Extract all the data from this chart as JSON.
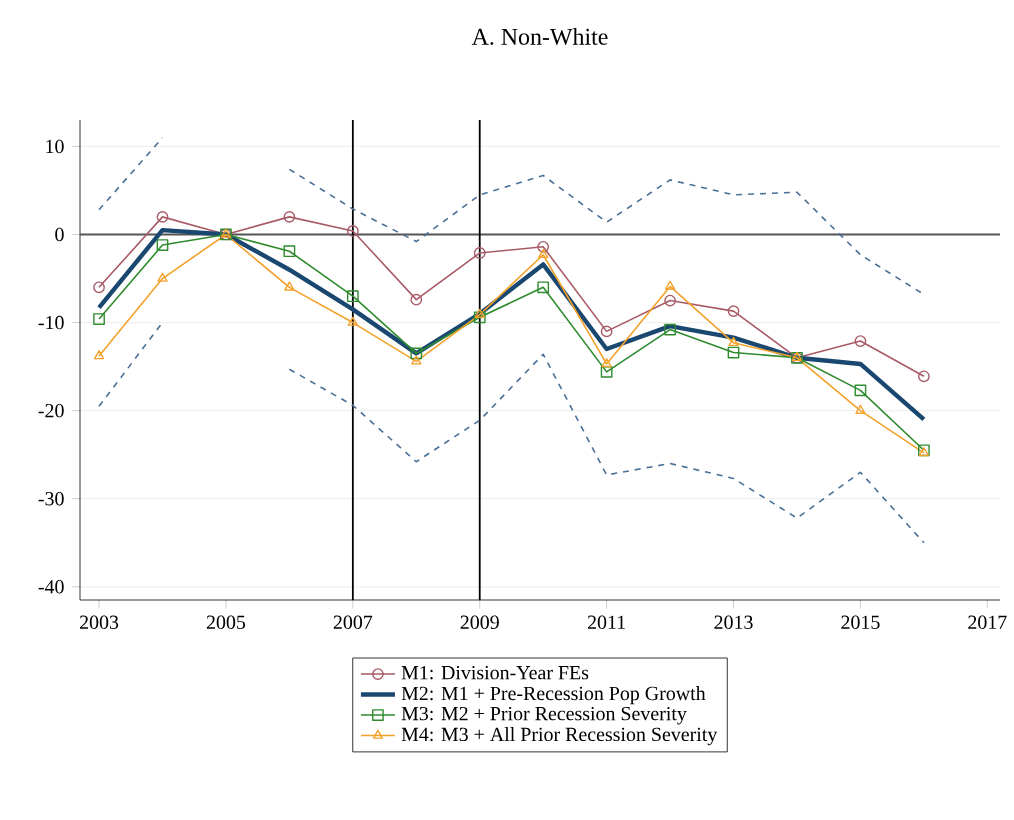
{
  "chart_data": {
    "type": "line",
    "title": "A. Non-White",
    "x": [
      2003,
      2004,
      2005,
      2006,
      2007,
      2008,
      2009,
      2010,
      2011,
      2012,
      2013,
      2014,
      2015,
      2016
    ],
    "series": [
      {
        "color": "#4a6f96",
        "line_style": "dashed",
        "marker": "none",
        "values": [
          2.8,
          11,
          null,
          7.4,
          2.9,
          -0.8,
          4.5,
          6.7,
          1.4,
          6.2,
          4.5,
          4.8,
          -2.3,
          -6.8
        ]
      },
      {
        "color": "#4a6f96",
        "line_style": "dashed",
        "marker": "none",
        "values": [
          -19.5,
          -10,
          null,
          -15.3,
          -19.4,
          -25.8,
          -21.1,
          -13.6,
          -27.3,
          -26,
          -27.7,
          -32.2,
          -27,
          -35
        ]
      },
      {
        "name": "M1: Division-Year FEs",
        "color": "#a85b66",
        "marker": "circle",
        "line_style": "solid",
        "values": [
          -6,
          2,
          0,
          2,
          0.4,
          -7.4,
          -2.1,
          -1.4,
          -11,
          -7.5,
          -8.7,
          -14,
          -12.1,
          -16.1
        ]
      },
      {
        "name": "M2: M1 + Pre-Recession Pop Growth",
        "color": "#1a476f",
        "marker": "none",
        "line_style": "solid",
        "values": [
          -8.3,
          0.5,
          0,
          -4,
          -8.5,
          -13.5,
          -9,
          -3.4,
          -13,
          -10.4,
          -11.7,
          -14,
          -14.7,
          -21
        ]
      },
      {
        "name": "M3: M2 + Prior Recession Severity",
        "color": "#2e8b2e",
        "marker": "square",
        "line_style": "solid",
        "values": [
          -9.6,
          -1.2,
          0,
          -1.9,
          -7,
          -13.5,
          -9.4,
          -6,
          -15.6,
          -10.8,
          -13.4,
          -14,
          -17.7,
          -24.5
        ]
      },
      {
        "name": "M4: M3 + All Prior Recession Severity",
        "color": "#f4a12b",
        "marker": "triangle",
        "line_style": "solid",
        "values": [
          -13.8,
          -5,
          0,
          -6,
          -10,
          -14.4,
          -9.1,
          -2.3,
          -14.7,
          -5.9,
          -12.3,
          -14,
          -20,
          -24.8
        ]
      }
    ],
    "xlim": [
      2002.7,
      2017.2
    ],
    "ylim": [
      -41.5,
      13
    ],
    "xticks": [
      2003,
      2005,
      2007,
      2009,
      2011,
      2013,
      2015,
      2017
    ],
    "yticks": [
      -40,
      -30,
      -20,
      -10,
      0,
      10
    ],
    "ref_lines": [
      {
        "axis": "y",
        "value": 0,
        "color": "#555555"
      },
      {
        "axis": "x",
        "value": 2007,
        "color": "#000000"
      },
      {
        "axis": "x",
        "value": 2009,
        "color": "#000000"
      }
    ],
    "grid": "y",
    "legend": "bottom"
  }
}
